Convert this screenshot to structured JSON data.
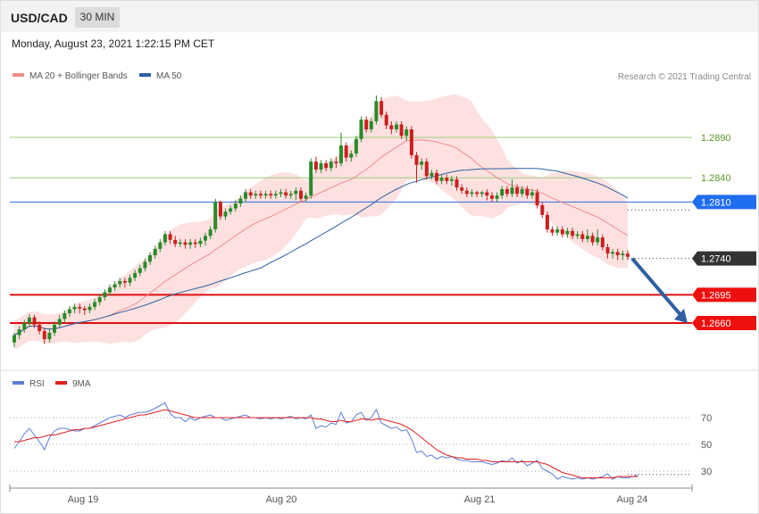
{
  "header": {
    "pair": "USD/CAD",
    "timeframe": "30 MIN"
  },
  "datetime": "Monday, August 23, 2021 1:22:15 PM CET",
  "legend": {
    "ma20": "MA 20 + Bollinger Bands",
    "ma50": "MA 50",
    "rsi": "RSI",
    "ma9": "9MA"
  },
  "credit": "Research © 2021 Trading Central",
  "colors": {
    "up": "#2a8a2a",
    "down": "#cc1f1f",
    "ma20": "#f08a8a",
    "ma50": "#2c5fa0",
    "band": "#fde1e1",
    "rsi": "#5b7fd6",
    "ma9": "#e02020"
  },
  "chart_data": [
    {
      "type": "candlestick",
      "x_ticks": [
        "Aug 19",
        "Aug 20",
        "Aug 21",
        "Aug 24"
      ],
      "levels": [
        {
          "value": 1.289,
          "label": "1.2890",
          "style": "green-line"
        },
        {
          "value": 1.284,
          "label": "1.2840",
          "style": "green-line"
        },
        {
          "value": 1.281,
          "label": "1.2810",
          "style": "blue-tag"
        },
        {
          "value": 1.274,
          "label": "1.2740",
          "style": "current-price"
        },
        {
          "value": 1.2695,
          "label": "1.2695",
          "style": "red-tag"
        },
        {
          "value": 1.266,
          "label": "1.2660",
          "style": "red-tag"
        }
      ],
      "forecast_arrow": {
        "from": 1.274,
        "to": 1.266
      },
      "candles": [
        [
          1.2636,
          1.2645,
          1.263,
          1.2648
        ],
        [
          1.2645,
          1.2652,
          1.264,
          1.2656
        ],
        [
          1.2652,
          1.266,
          1.2648,
          1.2664
        ],
        [
          1.266,
          1.2667,
          1.2655,
          1.2671
        ],
        [
          1.2667,
          1.2658,
          1.2654,
          1.267
        ],
        [
          1.2658,
          1.265,
          1.2646,
          1.2662
        ],
        [
          1.265,
          1.264,
          1.2634,
          1.2654
        ],
        [
          1.264,
          1.2648,
          1.2636,
          1.2652
        ],
        [
          1.2648,
          1.2658,
          1.2644,
          1.2662
        ],
        [
          1.2658,
          1.2665,
          1.2654,
          1.267
        ],
        [
          1.2665,
          1.2672,
          1.266,
          1.2676
        ],
        [
          1.2672,
          1.2677,
          1.2668,
          1.2681
        ],
        [
          1.2677,
          1.268,
          1.2672,
          1.2684
        ],
        [
          1.268,
          1.2678,
          1.2672,
          1.2684
        ],
        [
          1.2678,
          1.2676,
          1.267,
          1.2681
        ],
        [
          1.2676,
          1.268,
          1.2672,
          1.2684
        ],
        [
          1.268,
          1.2686,
          1.2676,
          1.269
        ],
        [
          1.2686,
          1.2692,
          1.2682,
          1.2696
        ],
        [
          1.2692,
          1.2698,
          1.2688,
          1.2702
        ],
        [
          1.2698,
          1.2704,
          1.2694,
          1.2708
        ],
        [
          1.2704,
          1.2708,
          1.27,
          1.2712
        ],
        [
          1.2708,
          1.2712,
          1.2704,
          1.2716
        ],
        [
          1.2712,
          1.271,
          1.2704,
          1.2716
        ],
        [
          1.271,
          1.2716,
          1.2706,
          1.272
        ],
        [
          1.2716,
          1.2722,
          1.2712,
          1.2726
        ],
        [
          1.2722,
          1.2728,
          1.2718,
          1.2732
        ],
        [
          1.2728,
          1.2736,
          1.2724,
          1.274
        ],
        [
          1.2736,
          1.2744,
          1.2732,
          1.2748
        ],
        [
          1.2744,
          1.2752,
          1.274,
          1.2756
        ],
        [
          1.2752,
          1.276,
          1.2748,
          1.2764
        ],
        [
          1.276,
          1.277,
          1.2756,
          1.2774
        ],
        [
          1.277,
          1.2763,
          1.2758,
          1.2774
        ],
        [
          1.2763,
          1.2758,
          1.2754,
          1.2768
        ],
        [
          1.2758,
          1.276,
          1.2754,
          1.2764
        ],
        [
          1.276,
          1.2757,
          1.2752,
          1.2764
        ],
        [
          1.2757,
          1.276,
          1.2752,
          1.2764
        ],
        [
          1.276,
          1.2758,
          1.2753,
          1.2764
        ],
        [
          1.2758,
          1.2762,
          1.2754,
          1.2766
        ],
        [
          1.2762,
          1.2768,
          1.2756,
          1.2772
        ],
        [
          1.2768,
          1.2776,
          1.2764,
          1.278
        ],
        [
          1.2776,
          1.281,
          1.2772,
          1.2814
        ],
        [
          1.281,
          1.2792,
          1.2788,
          1.2812
        ],
        [
          1.2792,
          1.2798,
          1.2788,
          1.2802
        ],
        [
          1.2798,
          1.2802,
          1.2794,
          1.2806
        ],
        [
          1.2802,
          1.2808,
          1.2798,
          1.2812
        ],
        [
          1.2808,
          1.2814,
          1.2804,
          1.2818
        ],
        [
          1.2814,
          1.2822,
          1.281,
          1.2826
        ],
        [
          1.2822,
          1.2818,
          1.2814,
          1.2826
        ],
        [
          1.2818,
          1.282,
          1.2814,
          1.2824
        ],
        [
          1.282,
          1.2818,
          1.2814,
          1.2824
        ],
        [
          1.2818,
          1.282,
          1.2814,
          1.2824
        ],
        [
          1.282,
          1.2818,
          1.2814,
          1.2824
        ],
        [
          1.2818,
          1.282,
          1.2814,
          1.2824
        ],
        [
          1.282,
          1.2822,
          1.2816,
          1.2826
        ],
        [
          1.2822,
          1.2818,
          1.2814,
          1.2826
        ],
        [
          1.2818,
          1.282,
          1.2814,
          1.2824
        ],
        [
          1.282,
          1.2824,
          1.2812,
          1.2828
        ],
        [
          1.2824,
          1.2814,
          1.281,
          1.2828
        ],
        [
          1.2814,
          1.2818,
          1.281,
          1.2822
        ],
        [
          1.2818,
          1.286,
          1.2814,
          1.2864
        ],
        [
          1.286,
          1.285,
          1.2846,
          1.2866
        ],
        [
          1.285,
          1.2858,
          1.2846,
          1.2862
        ],
        [
          1.2858,
          1.2852,
          1.2848,
          1.2862
        ],
        [
          1.2852,
          1.286,
          1.2848,
          1.2864
        ],
        [
          1.286,
          1.2858,
          1.2852,
          1.2866
        ],
        [
          1.2858,
          1.288,
          1.2854,
          1.2896
        ],
        [
          1.288,
          1.2865,
          1.286,
          1.2884
        ],
        [
          1.2865,
          1.287,
          1.286,
          1.2874
        ],
        [
          1.287,
          1.2888,
          1.2866,
          1.2892
        ],
        [
          1.2888,
          1.2912,
          1.2884,
          1.2916
        ],
        [
          1.2912,
          1.29,
          1.2896,
          1.2916
        ],
        [
          1.29,
          1.291,
          1.2896,
          1.2914
        ],
        [
          1.291,
          1.2935,
          1.2906,
          1.2942
        ],
        [
          1.2935,
          1.2918,
          1.2914,
          1.294
        ],
        [
          1.2918,
          1.2905,
          1.29,
          1.2922
        ],
        [
          1.2905,
          1.29,
          1.2894,
          1.291
        ],
        [
          1.29,
          1.2906,
          1.2896,
          1.291
        ],
        [
          1.2906,
          1.2892,
          1.2888,
          1.291
        ],
        [
          1.2892,
          1.29,
          1.2886,
          1.2904
        ],
        [
          1.29,
          1.2868,
          1.2864,
          1.2904
        ],
        [
          1.2868,
          1.2856,
          1.2834,
          1.2872
        ],
        [
          1.2856,
          1.286,
          1.285,
          1.2864
        ],
        [
          1.286,
          1.2842,
          1.2838,
          1.2864
        ],
        [
          1.2842,
          1.2846,
          1.2838,
          1.285
        ],
        [
          1.2846,
          1.2836,
          1.2832,
          1.285
        ],
        [
          1.2836,
          1.284,
          1.2832,
          1.2844
        ],
        [
          1.284,
          1.2836,
          1.2832,
          1.2844
        ],
        [
          1.2836,
          1.2838,
          1.283,
          1.2842
        ],
        [
          1.2838,
          1.2828,
          1.2824,
          1.2842
        ],
        [
          1.2828,
          1.2824,
          1.282,
          1.2832
        ],
        [
          1.2824,
          1.282,
          1.2816,
          1.2828
        ],
        [
          1.282,
          1.2822,
          1.2816,
          1.2826
        ],
        [
          1.2822,
          1.282,
          1.2816,
          1.2824
        ],
        [
          1.282,
          1.2822,
          1.2816,
          1.2824
        ],
        [
          1.2822,
          1.2818,
          1.2812,
          1.2826
        ],
        [
          1.2818,
          1.2814,
          1.281,
          1.2822
        ],
        [
          1.2814,
          1.2818,
          1.281,
          1.2822
        ],
        [
          1.2818,
          1.2826,
          1.2814,
          1.283
        ],
        [
          1.2826,
          1.282,
          1.2816,
          1.283
        ],
        [
          1.282,
          1.2828,
          1.2816,
          1.2838
        ],
        [
          1.2828,
          1.282,
          1.2816,
          1.2832
        ],
        [
          1.282,
          1.2826,
          1.2816,
          1.283
        ],
        [
          1.2826,
          1.2818,
          1.2814,
          1.283
        ],
        [
          1.2818,
          1.2822,
          1.2814,
          1.2826
        ],
        [
          1.2822,
          1.2806,
          1.2802,
          1.2826
        ],
        [
          1.2806,
          1.2794,
          1.279,
          1.281
        ],
        [
          1.2794,
          1.2776,
          1.2772,
          1.2798
        ],
        [
          1.2776,
          1.2772,
          1.2768,
          1.278
        ],
        [
          1.2772,
          1.2776,
          1.2768,
          1.278
        ],
        [
          1.2776,
          1.277,
          1.2766,
          1.278
        ],
        [
          1.277,
          1.2774,
          1.2766,
          1.2778
        ],
        [
          1.2774,
          1.2768,
          1.2764,
          1.2778
        ],
        [
          1.2768,
          1.277,
          1.2764,
          1.2774
        ],
        [
          1.277,
          1.2764,
          1.276,
          1.2774
        ],
        [
          1.2764,
          1.2768,
          1.276,
          1.2776
        ],
        [
          1.2768,
          1.276,
          1.2756,
          1.2772
        ],
        [
          1.276,
          1.2766,
          1.2756,
          1.2776
        ],
        [
          1.2766,
          1.2754,
          1.275,
          1.277
        ],
        [
          1.2754,
          1.2746,
          1.274,
          1.2758
        ],
        [
          1.2746,
          1.2748,
          1.274,
          1.2752
        ],
        [
          1.2748,
          1.2744,
          1.2738,
          1.2752
        ],
        [
          1.2744,
          1.2746,
          1.2738,
          1.275
        ],
        [
          1.2746,
          1.2742,
          1.2738,
          1.275
        ]
      ]
    },
    {
      "type": "line",
      "title": "RSI",
      "y_ticks": [
        70,
        50,
        30
      ],
      "series": [
        {
          "name": "RSI",
          "values": [
            47,
            52,
            58,
            62,
            57,
            52,
            46,
            55,
            60,
            62,
            62,
            61,
            60,
            60,
            62,
            62,
            64,
            66,
            68,
            70,
            71,
            72,
            70,
            72,
            73,
            74,
            74,
            75,
            77,
            79,
            81,
            73,
            70,
            70,
            67,
            70,
            68,
            70,
            71,
            72,
            70,
            70,
            68,
            69,
            70,
            71,
            72,
            70,
            70,
            69,
            70,
            69,
            70,
            69,
            70,
            71,
            69,
            70,
            69,
            72,
            62,
            64,
            63,
            66,
            65,
            74,
            66,
            67,
            72,
            74,
            68,
            70,
            76,
            66,
            64,
            62,
            63,
            60,
            61,
            54,
            44,
            45,
            41,
            42,
            39,
            41,
            40,
            41,
            39,
            38,
            38,
            37,
            37,
            37,
            36,
            35,
            36,
            38,
            37,
            40,
            36,
            38,
            34,
            36,
            38,
            32,
            30,
            28,
            24,
            26,
            25,
            24,
            25,
            24,
            25,
            24,
            25,
            26,
            28,
            24,
            26,
            25,
            25,
            26,
            27
          ]
        },
        {
          "name": "9MA",
          "values": [
            52,
            52,
            53,
            54,
            55,
            55,
            56,
            57,
            57,
            58,
            59,
            60,
            61,
            61,
            62,
            62,
            63,
            64,
            65,
            66,
            67,
            68,
            69,
            70,
            71,
            72,
            72,
            73,
            74,
            75,
            76,
            75,
            74,
            73,
            72,
            71,
            70,
            70,
            70,
            70,
            70,
            70,
            70,
            70,
            70,
            70,
            70,
            70,
            70,
            70,
            70,
            70,
            70,
            70,
            70,
            70,
            70,
            70,
            70,
            70,
            69,
            69,
            68,
            67,
            67,
            68,
            67,
            67,
            68,
            69,
            69,
            68,
            69,
            69,
            68,
            67,
            66,
            65,
            63,
            61,
            58,
            55,
            52,
            49,
            46,
            44,
            42,
            41,
            40,
            40,
            39,
            39,
            39,
            38,
            38,
            37,
            37,
            37,
            37,
            37,
            37,
            37,
            37,
            37,
            37,
            36,
            35,
            33,
            31,
            29,
            28,
            27,
            26,
            25,
            25,
            25,
            25,
            25,
            25,
            25,
            26,
            26,
            26,
            26,
            26
          ]
        }
      ]
    }
  ]
}
